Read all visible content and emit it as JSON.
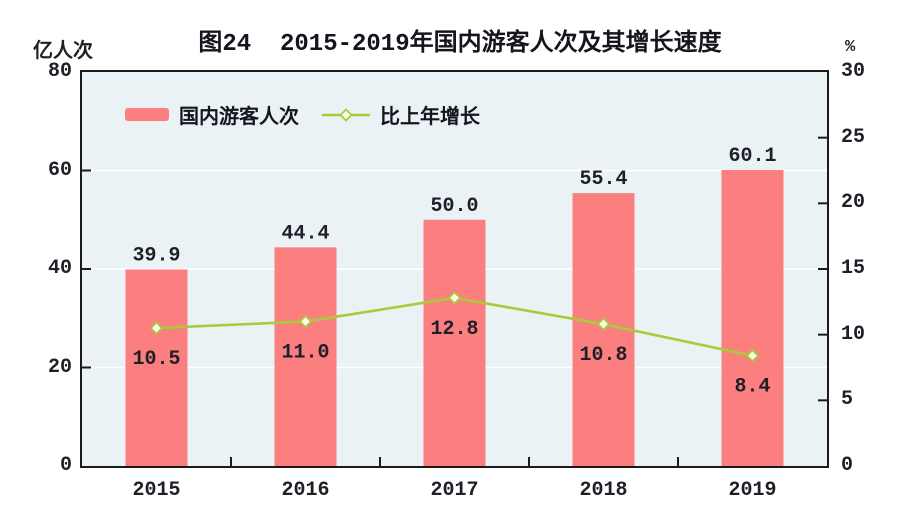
{
  "figure": {
    "title": "图24  2015-2019年国内游客人次及其增长速度"
  },
  "chart_data": {
    "type": "bar",
    "subtype": "bar-line-combo-dual-axis",
    "title": "图24  2015-2019年国内游客人次及其增长速度",
    "categories": [
      "2015",
      "2016",
      "2017",
      "2018",
      "2019"
    ],
    "series": [
      {
        "name": "国内游客人次",
        "type": "bar",
        "axis": "left",
        "unit": "亿人次",
        "values": [
          39.9,
          44.4,
          50.0,
          55.4,
          60.1
        ],
        "labels": [
          "39.9",
          "44.4",
          "50.0",
          "55.4",
          "60.1"
        ]
      },
      {
        "name": "比上年增长",
        "type": "line",
        "axis": "right",
        "unit": "%",
        "values": [
          10.5,
          11.0,
          12.8,
          10.8,
          8.4
        ],
        "labels": [
          "10.5",
          "11.0",
          "12.8",
          "10.8",
          "8.4"
        ]
      }
    ],
    "left_axis": {
      "unit": "亿人次",
      "min": 0,
      "max": 80,
      "tick_values": [
        0,
        20,
        40,
        60,
        80
      ],
      "tick_labels": [
        "0",
        "20",
        "40",
        "60",
        "80"
      ]
    },
    "right_axis": {
      "unit": "%",
      "min": 0,
      "max": 30,
      "tick_values": [
        0,
        5,
        10,
        15,
        20,
        25,
        30
      ],
      "tick_labels": [
        "0",
        "5",
        "10",
        "15",
        "20",
        "25",
        "30"
      ]
    },
    "legend": {
      "position": "top-left-inside",
      "items": [
        {
          "label": "国内游客人次",
          "marker": "bar"
        },
        {
          "label": "比上年增长",
          "marker": "line-diamond"
        }
      ]
    },
    "grid": {
      "horizontal_at_left_values": [
        20,
        40,
        60
      ],
      "color": "#FFFFFF"
    },
    "colors": {
      "bar": "#FB7F7F",
      "line": "#A9CB3A",
      "marker_fill": "#FCFEF0",
      "plot_bg": "#EAF2F6",
      "axis": "#1A1A1A",
      "text": "#1F1F27"
    }
  }
}
